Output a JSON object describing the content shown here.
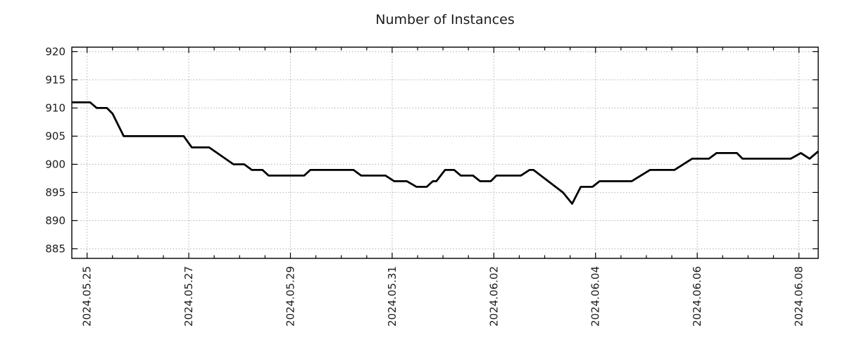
{
  "chart_data": {
    "type": "line",
    "title": "Number of Instances",
    "grid": true,
    "legend": null,
    "line_color": "#000000",
    "grid_color": "#b0b0b0",
    "text_color": "#1c1c1c",
    "x_axis": {
      "epoch_label": "2024.05.25",
      "tick_labels": [
        "2024.05.25",
        "2024.05.27",
        "2024.05.29",
        "2024.05.31",
        "2024.06.02",
        "2024.06.04",
        "2024.06.06",
        "2024.06.08"
      ],
      "tick_days": [
        0,
        2,
        4,
        6,
        8,
        10,
        12,
        14
      ],
      "minor_tick_interval_days": 0.5,
      "xlim_days": [
        -0.3,
        14.38
      ]
    },
    "y_axis": {
      "ticks": [
        885,
        890,
        895,
        900,
        905,
        910,
        915,
        920
      ],
      "ylim": [
        883.3,
        920.8
      ]
    },
    "series": [
      {
        "name": "instances",
        "points_days_value": [
          [
            -0.3,
            911
          ],
          [
            0.06,
            911
          ],
          [
            0.19,
            910
          ],
          [
            0.39,
            910
          ],
          [
            0.5,
            909
          ],
          [
            0.72,
            905
          ],
          [
            1.9,
            905
          ],
          [
            2.06,
            903
          ],
          [
            2.4,
            903
          ],
          [
            2.88,
            900
          ],
          [
            3.09,
            900
          ],
          [
            3.24,
            899
          ],
          [
            3.45,
            899
          ],
          [
            3.57,
            898
          ],
          [
            4.27,
            898
          ],
          [
            4.39,
            899
          ],
          [
            5.24,
            899
          ],
          [
            5.39,
            898
          ],
          [
            5.87,
            898
          ],
          [
            6.04,
            897
          ],
          [
            6.29,
            897
          ],
          [
            6.48,
            896
          ],
          [
            6.68,
            896
          ],
          [
            6.8,
            897
          ],
          [
            6.87,
            897
          ],
          [
            7.04,
            899
          ],
          [
            7.22,
            899
          ],
          [
            7.35,
            898
          ],
          [
            7.59,
            898
          ],
          [
            7.73,
            897
          ],
          [
            7.94,
            897
          ],
          [
            8.05,
            898
          ],
          [
            8.53,
            898
          ],
          [
            8.7,
            899
          ],
          [
            8.78,
            899
          ],
          [
            9.36,
            895
          ],
          [
            9.54,
            893
          ],
          [
            9.71,
            896
          ],
          [
            9.94,
            896
          ],
          [
            10.08,
            897
          ],
          [
            10.71,
            897
          ],
          [
            11.07,
            899
          ],
          [
            11.55,
            899
          ],
          [
            11.9,
            901
          ],
          [
            12.23,
            901
          ],
          [
            12.38,
            902
          ],
          [
            12.78,
            902
          ],
          [
            12.89,
            901
          ],
          [
            13.84,
            901
          ],
          [
            14.04,
            902
          ],
          [
            14.21,
            901
          ],
          [
            14.38,
            902.3
          ]
        ]
      }
    ]
  }
}
